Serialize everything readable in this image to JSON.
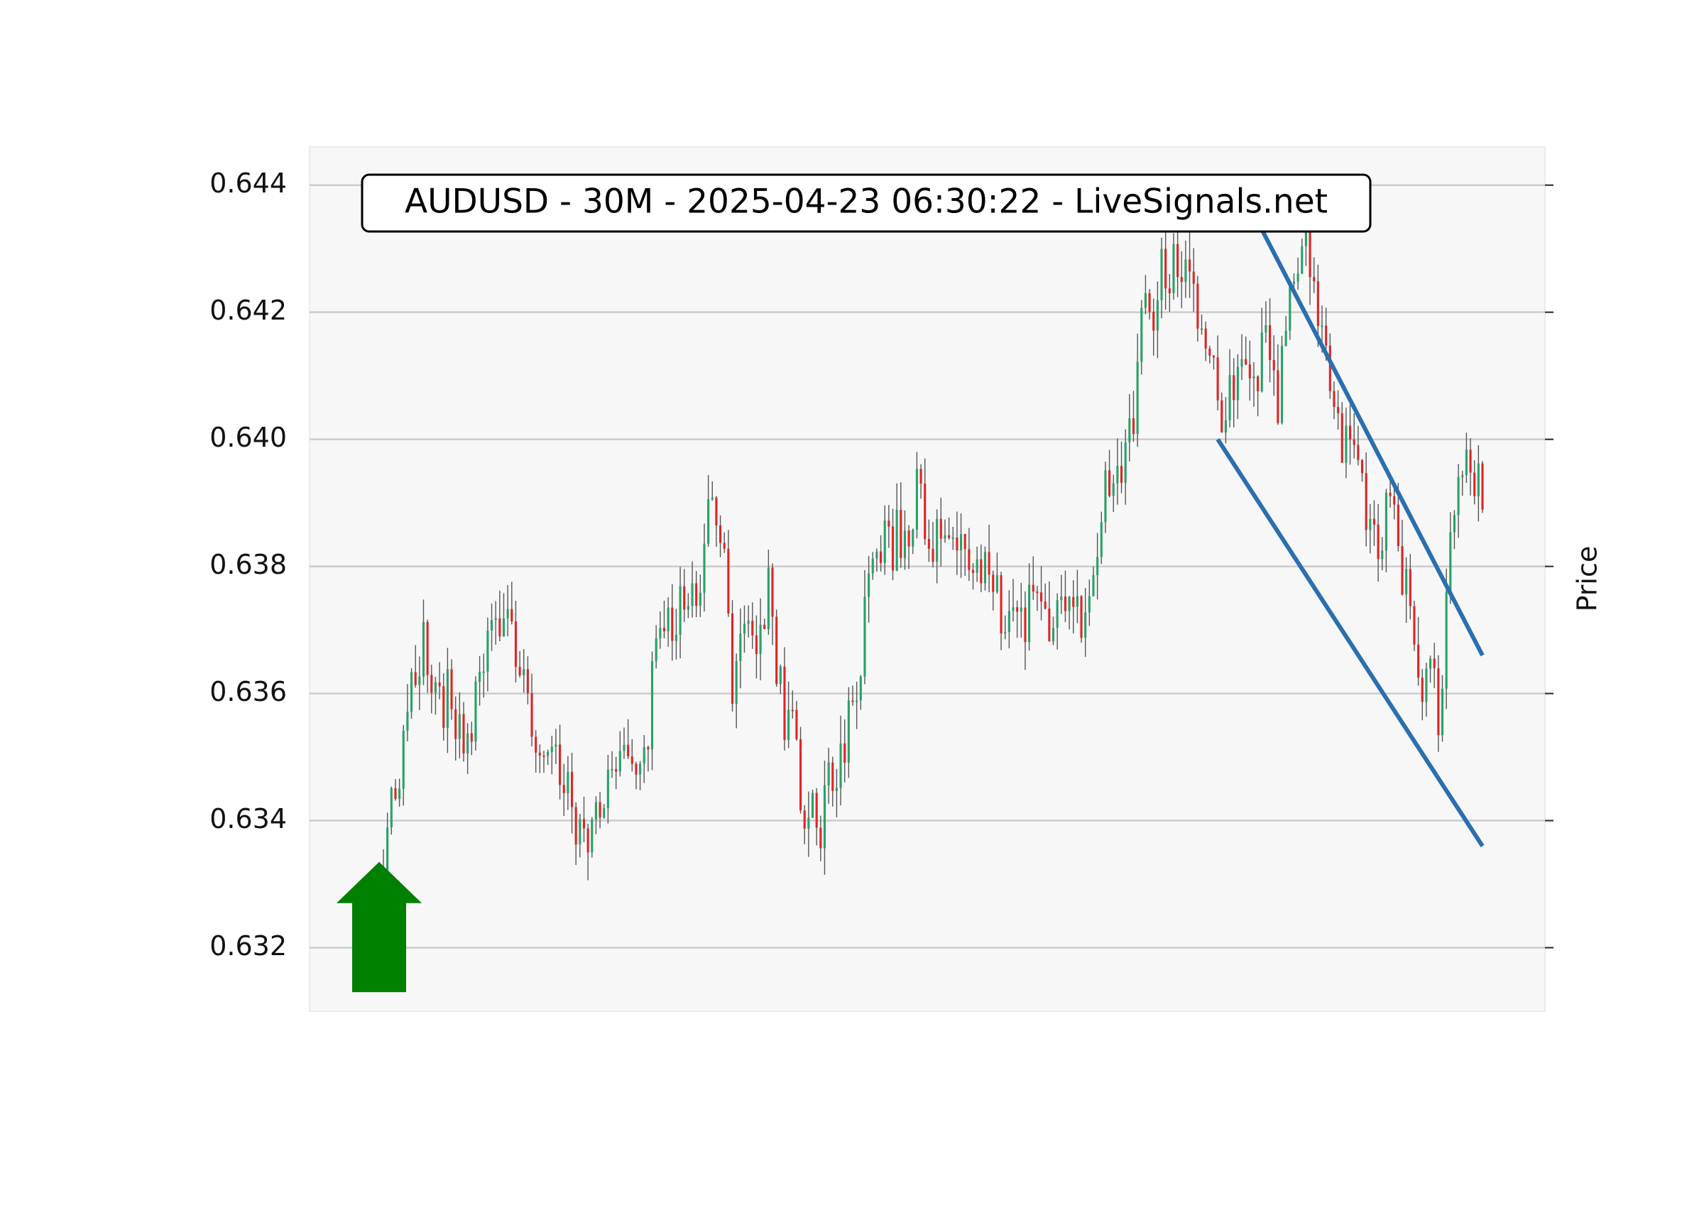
{
  "chart_data": {
    "type": "candlestick",
    "title": "AUDUSD - 30M - 2025-04-23 06:30:22 - LiveSignals.net",
    "ylabel": "Price",
    "xlabel": "",
    "ylim": [
      0.631,
      0.6446
    ],
    "y_ticks": [
      "0.632",
      "0.634",
      "0.636",
      "0.638",
      "0.640",
      "0.642",
      "0.644"
    ],
    "x_ticks": [],
    "grid": true,
    "colors": {
      "up": "#26a269",
      "down": "#e02424",
      "wick": "#555555",
      "trendline": "#2a6fb0",
      "signal_arrow": "#008000",
      "background": "#f7f7f7",
      "grid": "#cccccc"
    },
    "price_anchors": [
      [
        0,
        0.6334
      ],
      [
        2,
        0.6342
      ],
      [
        5,
        0.635
      ],
      [
        8,
        0.6362
      ],
      [
        10,
        0.637
      ],
      [
        13,
        0.6357
      ],
      [
        17,
        0.636
      ],
      [
        20,
        0.6348
      ],
      [
        24,
        0.6362
      ],
      [
        28,
        0.6375
      ],
      [
        32,
        0.6371
      ],
      [
        36,
        0.636
      ],
      [
        40,
        0.6351
      ],
      [
        44,
        0.6346
      ],
      [
        48,
        0.634
      ],
      [
        52,
        0.6336
      ],
      [
        56,
        0.6346
      ],
      [
        60,
        0.6351
      ],
      [
        64,
        0.635
      ],
      [
        67,
        0.636
      ],
      [
        70,
        0.6374
      ],
      [
        74,
        0.6372
      ],
      [
        78,
        0.6372
      ],
      [
        81,
        0.6386
      ],
      [
        85,
        0.6385
      ],
      [
        87,
        0.6358
      ],
      [
        90,
        0.6367
      ],
      [
        93,
        0.637
      ],
      [
        96,
        0.6375
      ],
      [
        99,
        0.636
      ],
      [
        102,
        0.6353
      ],
      [
        105,
        0.6344
      ],
      [
        108,
        0.6337
      ],
      [
        111,
        0.6346
      ],
      [
        115,
        0.6354
      ],
      [
        118,
        0.636
      ],
      [
        121,
        0.638
      ],
      [
        124,
        0.6386
      ],
      [
        127,
        0.6382
      ],
      [
        130,
        0.6387
      ],
      [
        133,
        0.639
      ],
      [
        136,
        0.6388
      ],
      [
        139,
        0.6382
      ],
      [
        142,
        0.6387
      ],
      [
        145,
        0.6382
      ],
      [
        147,
        0.6376
      ],
      [
        150,
        0.6381
      ],
      [
        152,
        0.638
      ],
      [
        154,
        0.637
      ],
      [
        157,
        0.6371
      ],
      [
        160,
        0.6373
      ],
      [
        164,
        0.6372
      ],
      [
        168,
        0.6375
      ],
      [
        171,
        0.6377
      ],
      [
        174,
        0.6373
      ],
      [
        177,
        0.6381
      ],
      [
        180,
        0.639
      ],
      [
        183,
        0.6394
      ],
      [
        186,
        0.6401
      ],
      [
        189,
        0.6416
      ],
      [
        191,
        0.642
      ],
      [
        194,
        0.6426
      ],
      [
        197,
        0.6428
      ],
      [
        200,
        0.6426
      ],
      [
        203,
        0.642
      ],
      [
        206,
        0.6412
      ],
      [
        209,
        0.6403
      ],
      [
        212,
        0.6408
      ],
      [
        215,
        0.6414
      ],
      [
        218,
        0.641
      ],
      [
        221,
        0.6416
      ],
      [
        223,
        0.6405
      ],
      [
        226,
        0.642
      ],
      [
        229,
        0.6432
      ],
      [
        232,
        0.6425
      ],
      [
        235,
        0.6417
      ],
      [
        238,
        0.6402
      ],
      [
        241,
        0.6396
      ],
      [
        244,
        0.6392
      ],
      [
        247,
        0.6386
      ],
      [
        250,
        0.6387
      ],
      [
        252,
        0.6393
      ],
      [
        254,
        0.638
      ],
      [
        257,
        0.6367
      ],
      [
        259,
        0.6364
      ],
      [
        261,
        0.6366
      ],
      [
        263,
        0.6352
      ],
      [
        266,
        0.6386
      ],
      [
        269,
        0.6396
      ],
      [
        271,
        0.6393
      ],
      [
        274,
        0.6393
      ]
    ],
    "candle_count": 275,
    "trendlines": [
      {
        "from": [
          219,
          0.6433
        ],
        "to": [
          274,
          0.6366
        ]
      },
      {
        "from": [
          208,
          0.64
        ],
        "to": [
          274,
          0.6336
        ]
      }
    ],
    "signal": {
      "direction": "up",
      "at_index": 0
    }
  }
}
